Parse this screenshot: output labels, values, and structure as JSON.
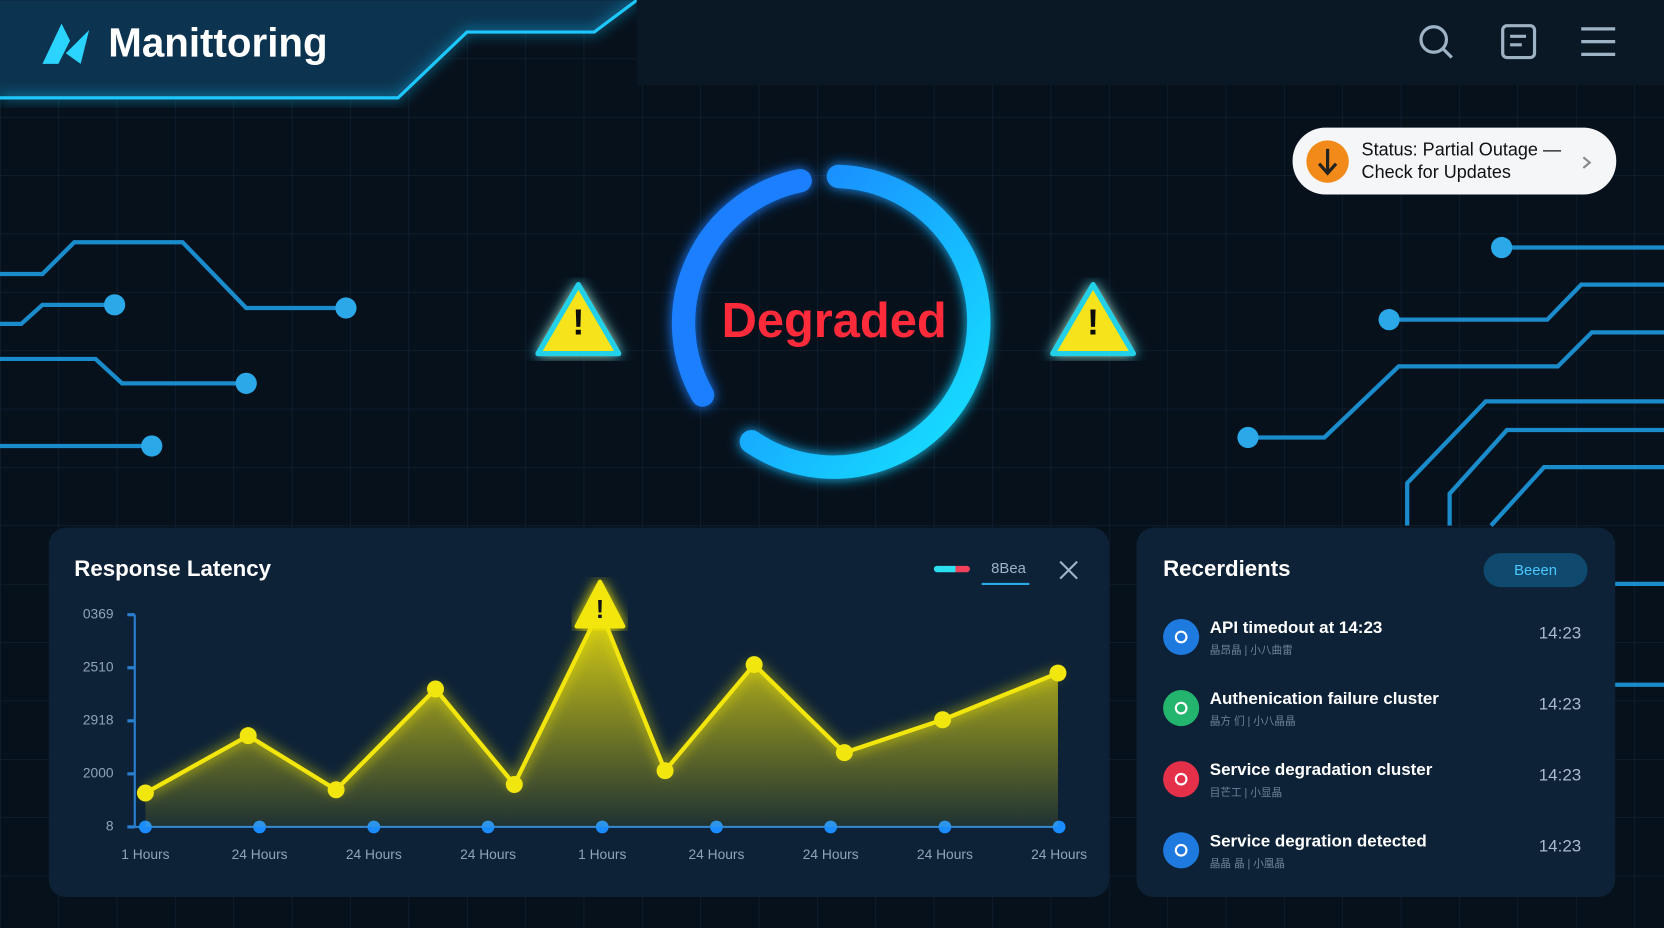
{
  "header": {
    "title": "Manittoring"
  },
  "status_banner": {
    "line1": "Status: Partial Outage —",
    "line2": "Check for Updates"
  },
  "center_status": "Degraded",
  "chart_data": {
    "type": "line",
    "title": "Response Latency",
    "legend_label": "8Bea",
    "series": [
      {
        "name": "8Bea",
        "color": "#f2e60f",
        "x": [
          0,
          0.9,
          1.67,
          2.54,
          3.23,
          3.98,
          4.55,
          5.33,
          6.12,
          6.98,
          7.99
        ],
        "values": [
          0.64,
          1.72,
          0.7,
          2.6,
          0.8,
          4.1,
          1.06,
          3.06,
          1.4,
          2.02,
          2.9
        ]
      }
    ],
    "xlim": [
      0,
      8
    ],
    "xticks": [
      {
        "value": 0,
        "label": "1 Hours"
      },
      {
        "value": 1,
        "label": "24 Hours"
      },
      {
        "value": 2,
        "label": "24 Hours"
      },
      {
        "value": 3,
        "label": "24 Hours"
      },
      {
        "value": 4,
        "label": "1 Hours"
      },
      {
        "value": 5,
        "label": "24 Hours"
      },
      {
        "value": 6,
        "label": "24 Hours"
      },
      {
        "value": 7,
        "label": "24 Hours"
      },
      {
        "value": 8,
        "label": "24 Hours"
      }
    ],
    "ylim": [
      0,
      4
    ],
    "yticks": [
      {
        "value": 0,
        "label": "8"
      },
      {
        "value": 1,
        "label": "2000"
      },
      {
        "value": 2,
        "label": "2918"
      },
      {
        "value": 3,
        "label": "2510"
      },
      {
        "value": 4,
        "label": "0369"
      }
    ],
    "grid": false
  },
  "incidents": {
    "title": "Recerdients",
    "button": "Beeen",
    "items": [
      {
        "title": "API timedout at 14:23",
        "subtitle": "晶昂晶 | 小八曲雷",
        "time": "14:23",
        "color": "#1f7ae0"
      },
      {
        "title": "Authenication failure cluster",
        "subtitle": "晶方 们 | 小八晶晶",
        "time": "14:23",
        "color": "#23b56e"
      },
      {
        "title": "Service degradation cluster",
        "subtitle": "目芒工 | 小显晶",
        "time": "14:23",
        "color": "#e5304a"
      },
      {
        "title": "Service degration detected",
        "subtitle": "晶晶 晶 | 小凰晶",
        "time": "14:23",
        "color": "#1f7ae0"
      }
    ]
  }
}
